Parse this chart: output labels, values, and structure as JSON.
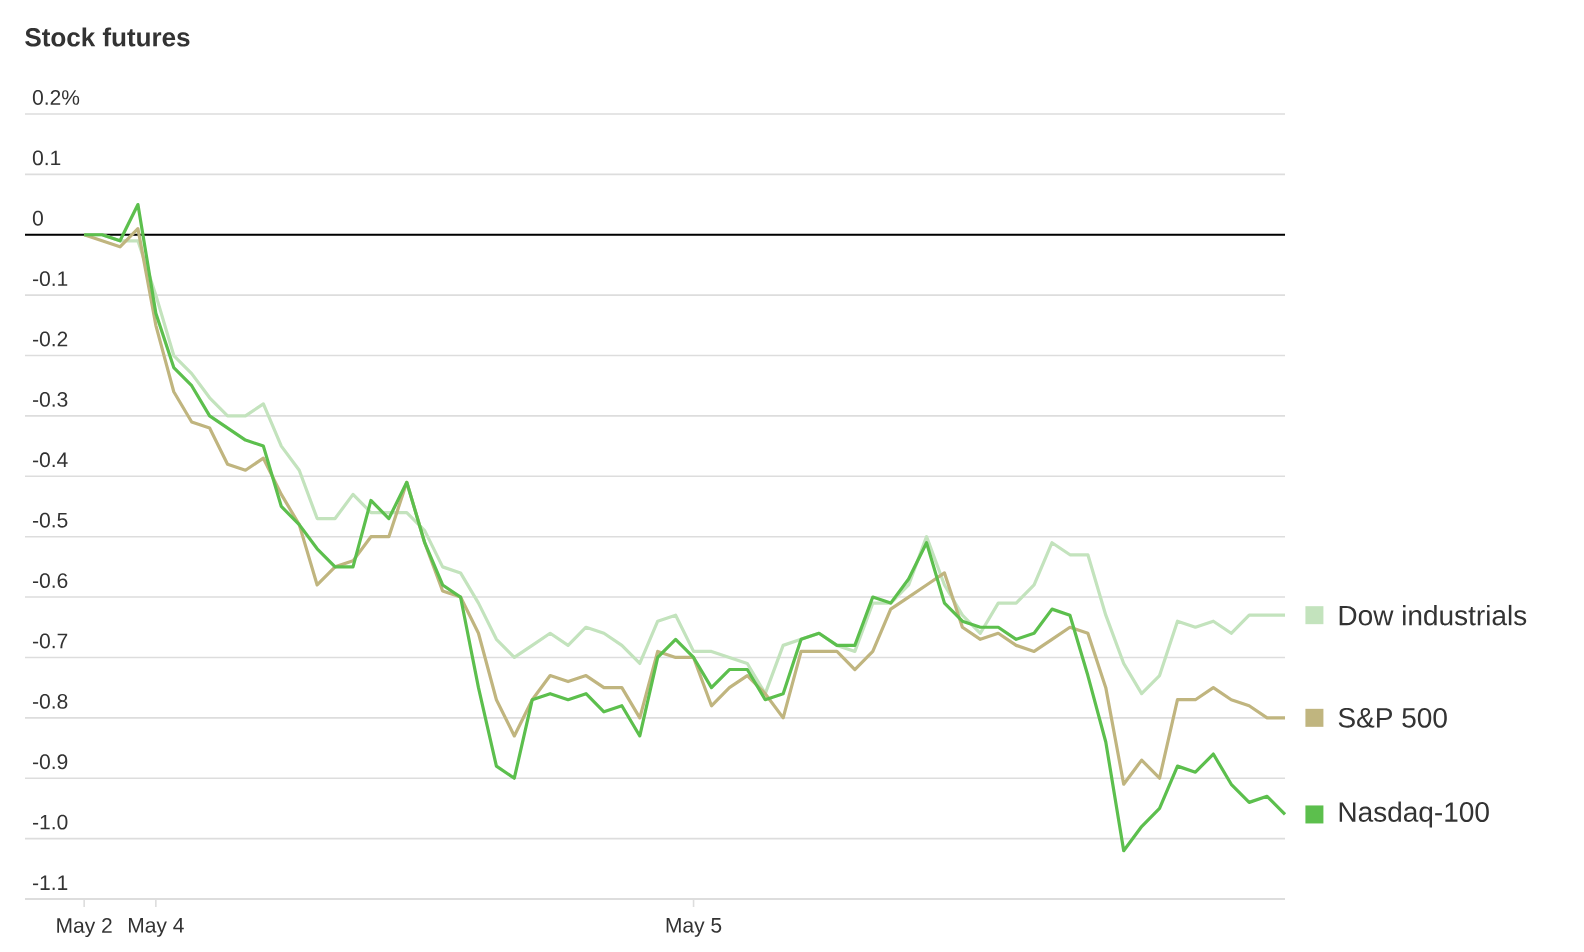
{
  "chart_data": {
    "type": "line",
    "title": "Stock futures",
    "categories": [
      "May 2",
      null,
      null,
      null,
      "May 4",
      null,
      null,
      null,
      null,
      null,
      null,
      null,
      null,
      null,
      null,
      null,
      null,
      null,
      null,
      null,
      null,
      null,
      null,
      null,
      null,
      null,
      null,
      null,
      null,
      null,
      null,
      null,
      null,
      null,
      "May 5",
      null,
      null,
      null,
      null,
      null,
      null,
      null,
      null,
      null,
      null,
      null,
      null,
      null,
      null,
      null,
      null,
      null,
      null,
      null,
      null,
      null,
      null,
      null,
      null,
      null,
      null,
      null,
      null,
      null,
      null,
      null,
      null,
      null
    ],
    "series": [
      {
        "name": "Dow industrials",
        "color": "#c3e3bd",
        "values": [
          0.0,
          0.0,
          -0.01,
          -0.01,
          -0.1,
          -0.2,
          -0.23,
          -0.27,
          -0.3,
          -0.3,
          -0.28,
          -0.35,
          -0.39,
          -0.47,
          -0.47,
          -0.43,
          -0.46,
          -0.46,
          -0.46,
          -0.49,
          -0.55,
          -0.56,
          -0.61,
          -0.67,
          -0.7,
          -0.68,
          -0.66,
          -0.68,
          -0.65,
          -0.66,
          -0.68,
          -0.71,
          -0.64,
          -0.63,
          -0.69,
          -0.69,
          -0.7,
          -0.71,
          -0.76,
          -0.68,
          -0.67,
          -0.66,
          -0.68,
          -0.69,
          -0.61,
          -0.61,
          -0.58,
          -0.5,
          -0.58,
          -0.63,
          -0.66,
          -0.61,
          -0.61,
          -0.58,
          -0.51,
          -0.53,
          -0.53,
          -0.63,
          -0.71,
          -0.76,
          -0.73,
          -0.64,
          -0.65,
          -0.64,
          -0.66,
          -0.63,
          -0.63,
          -0.63
        ]
      },
      {
        "name": "S&P 500",
        "color": "#c0b57f",
        "values": [
          0.0,
          -0.01,
          -0.02,
          0.01,
          -0.15,
          -0.26,
          -0.31,
          -0.32,
          -0.38,
          -0.39,
          -0.37,
          -0.43,
          -0.48,
          -0.58,
          -0.55,
          -0.54,
          -0.5,
          -0.5,
          -0.41,
          -0.51,
          -0.59,
          -0.6,
          -0.66,
          -0.77,
          -0.83,
          -0.77,
          -0.73,
          -0.74,
          -0.73,
          -0.75,
          -0.75,
          -0.8,
          -0.69,
          -0.7,
          -0.7,
          -0.78,
          -0.75,
          -0.73,
          -0.76,
          -0.8,
          -0.69,
          -0.69,
          -0.69,
          -0.72,
          -0.69,
          -0.62,
          -0.6,
          -0.58,
          -0.56,
          -0.65,
          -0.67,
          -0.66,
          -0.68,
          -0.69,
          -0.67,
          -0.65,
          -0.66,
          -0.75,
          -0.91,
          -0.87,
          -0.9,
          -0.77,
          -0.77,
          -0.75,
          -0.77,
          -0.78,
          -0.8,
          -0.8
        ]
      },
      {
        "name": "Nasdaq-100",
        "color": "#5cbf4d",
        "values": [
          0.0,
          0.0,
          -0.01,
          0.05,
          -0.13,
          -0.22,
          -0.25,
          -0.3,
          -0.32,
          -0.34,
          -0.35,
          -0.45,
          -0.48,
          -0.52,
          -0.55,
          -0.55,
          -0.44,
          -0.47,
          -0.41,
          -0.51,
          -0.58,
          -0.6,
          -0.75,
          -0.88,
          -0.9,
          -0.77,
          -0.76,
          -0.77,
          -0.76,
          -0.79,
          -0.78,
          -0.83,
          -0.7,
          -0.67,
          -0.7,
          -0.75,
          -0.72,
          -0.72,
          -0.77,
          -0.76,
          -0.67,
          -0.66,
          -0.68,
          -0.68,
          -0.6,
          -0.61,
          -0.57,
          -0.51,
          -0.61,
          -0.64,
          -0.65,
          -0.65,
          -0.67,
          -0.66,
          -0.62,
          -0.63,
          -0.73,
          -0.84,
          -1.02,
          -0.98,
          -0.95,
          -0.88,
          -0.89,
          -0.86,
          -0.91,
          -0.94,
          -0.93,
          -0.96
        ]
      }
    ],
    "ylim": [
      -1.1,
      0.2
    ],
    "yticks": [
      {
        "value": 0.2,
        "label": "0.2%"
      },
      0.1,
      0,
      -0.1,
      -0.2,
      -0.3,
      -0.4,
      -0.5,
      -0.6,
      -0.7,
      -0.8,
      -0.9,
      {
        "value": -1.0,
        "label": "-1.0"
      },
      -1.1
    ],
    "ref_lines": [
      {
        "axis": "y",
        "value": 0,
        "color": "#000000"
      }
    ],
    "grid": "y",
    "legend": "right"
  }
}
